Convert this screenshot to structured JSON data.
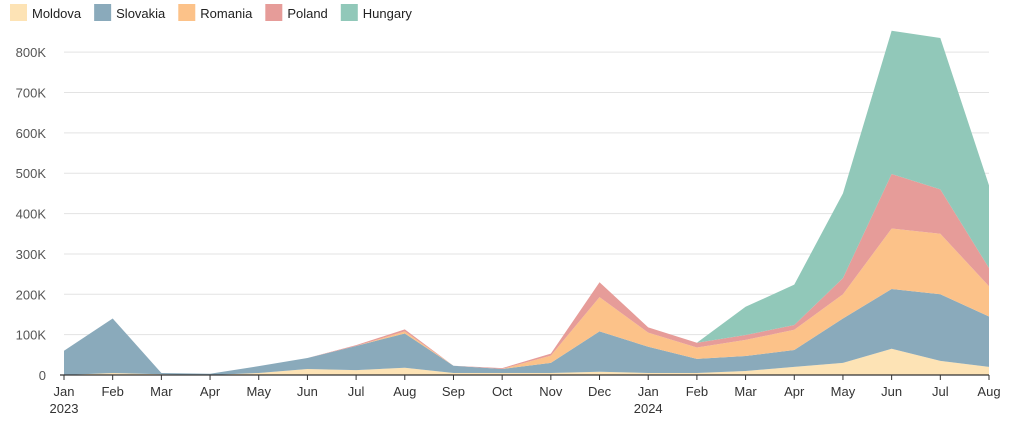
{
  "chart_data": {
    "type": "area",
    "stacked": true,
    "title": "",
    "xlabel": "",
    "ylabel": "",
    "ylim": [
      0,
      850000
    ],
    "y_ticks": [
      0,
      100000,
      200000,
      300000,
      400000,
      500000,
      600000,
      700000,
      800000
    ],
    "y_tick_labels": [
      "0",
      "100K",
      "200K",
      "300K",
      "400K",
      "500K",
      "600K",
      "700K",
      "800K"
    ],
    "legend_position": "top-left",
    "categories": [
      "Jan",
      "Feb",
      "Mar",
      "Apr",
      "May",
      "Jun",
      "Jul",
      "Aug",
      "Sep",
      "Oct",
      "Nov",
      "Dec",
      "Jan",
      "Feb",
      "Mar",
      "Apr",
      "May",
      "Jun",
      "Jul",
      "Aug"
    ],
    "year_labels": [
      {
        "index": 0,
        "label": "2023"
      },
      {
        "index": 12,
        "label": "2024"
      }
    ],
    "series": [
      {
        "name": "Moldova",
        "color": "#fde3b5",
        "values": [
          0,
          5000,
          2000,
          0,
          5000,
          15000,
          12000,
          18000,
          5000,
          5000,
          5000,
          8000,
          5000,
          5000,
          10000,
          20000,
          30000,
          65000,
          35000,
          20000
        ]
      },
      {
        "name": "Slovakia",
        "color": "#8aaabb",
        "values": [
          60000,
          135000,
          3000,
          3000,
          17000,
          27000,
          60000,
          85000,
          18000,
          10000,
          25000,
          100000,
          65000,
          35000,
          37000,
          42000,
          110000,
          148000,
          165000,
          125000
        ]
      },
      {
        "name": "Romania",
        "color": "#fcc289",
        "values": [
          0,
          0,
          0,
          0,
          0,
          0,
          0,
          5000,
          0,
          0,
          18000,
          85000,
          35000,
          28000,
          40000,
          50000,
          60000,
          150000,
          150000,
          75000
        ]
      },
      {
        "name": "Poland",
        "color": "#e69c99",
        "values": [
          0,
          0,
          0,
          0,
          0,
          0,
          2000,
          5000,
          0,
          2000,
          5000,
          37000,
          13000,
          12000,
          12000,
          12000,
          40000,
          135000,
          110000,
          45000
        ]
      },
      {
        "name": "Hungary",
        "color": "#91c8b9",
        "values": [
          0,
          0,
          0,
          0,
          0,
          0,
          0,
          0,
          0,
          0,
          0,
          0,
          0,
          0,
          70000,
          100000,
          210000,
          355000,
          375000,
          205000
        ]
      }
    ]
  }
}
